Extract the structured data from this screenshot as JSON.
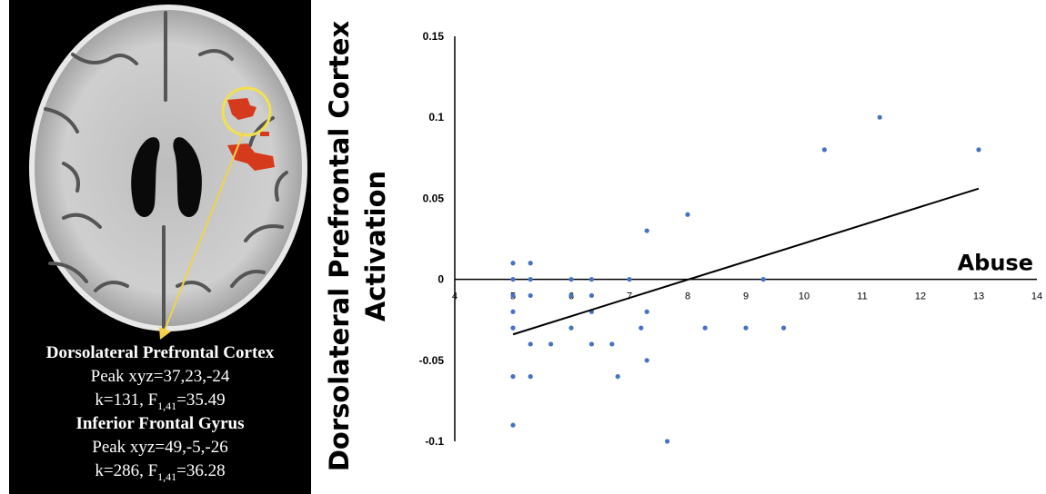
{
  "brain_panel": {
    "region1_name": "Dorsolateral Prefrontal Cortex",
    "region1_peak": "Peak xyz=37,23,-24",
    "region1_k": "k=131, F",
    "region1_sub": "1,41",
    "region1_f": "=35.49",
    "region2_name": "Inferior Frontal Gyrus",
    "region2_peak": "Peak xyz=49,-5,-26",
    "region2_k": "k=286, F",
    "region2_sub": "1,41",
    "region2_f": "=36.28",
    "colors": {
      "activation": "#d63a1c",
      "circle": "#f2e14b",
      "arrow": "#f2d24b"
    }
  },
  "chart_data": {
    "type": "scatter",
    "ylabel_line1": "Dorsolateral Prefrontal Cortex",
    "ylabel_line2": "Activation",
    "xlabel": "Abuse",
    "xlim": [
      4,
      14
    ],
    "ylim": [
      -0.1,
      0.15
    ],
    "x_ticks": [
      "4",
      "5",
      "6",
      "7",
      "8",
      "9",
      "10",
      "11",
      "12",
      "13",
      "14"
    ],
    "y_ticks": [
      "0.15",
      "0.1",
      "0.05",
      "0",
      "-0.05",
      "-0.1"
    ],
    "point_color": "#4472c4",
    "points": [
      [
        5,
        0.01
      ],
      [
        5,
        0
      ],
      [
        5,
        -0.01
      ],
      [
        5,
        -0.02
      ],
      [
        5,
        -0.03
      ],
      [
        5,
        -0.06
      ],
      [
        5,
        -0.09
      ],
      [
        5.3,
        0.01
      ],
      [
        5.3,
        0
      ],
      [
        5.3,
        -0.01
      ],
      [
        5.3,
        -0.04
      ],
      [
        5.3,
        -0.06
      ],
      [
        5.65,
        -0.04
      ],
      [
        6,
        0
      ],
      [
        6,
        -0.01
      ],
      [
        6,
        -0.03
      ],
      [
        6.35,
        0
      ],
      [
        6.35,
        -0.01
      ],
      [
        6.35,
        -0.02
      ],
      [
        6.35,
        -0.04
      ],
      [
        6.7,
        -0.04
      ],
      [
        6.8,
        -0.06
      ],
      [
        7,
        0
      ],
      [
        7.2,
        -0.03
      ],
      [
        7.3,
        0.03
      ],
      [
        7.3,
        -0.02
      ],
      [
        7.3,
        -0.05
      ],
      [
        7.65,
        -0.1
      ],
      [
        8,
        0.04
      ],
      [
        8.3,
        -0.03
      ],
      [
        9,
        -0.03
      ],
      [
        9.3,
        0
      ],
      [
        9.65,
        -0.03
      ],
      [
        10.35,
        0.08
      ],
      [
        11.3,
        0.1
      ],
      [
        13,
        0.08
      ]
    ],
    "trendline": {
      "x": [
        5,
        13
      ],
      "y": [
        -0.034,
        0.056
      ]
    }
  }
}
